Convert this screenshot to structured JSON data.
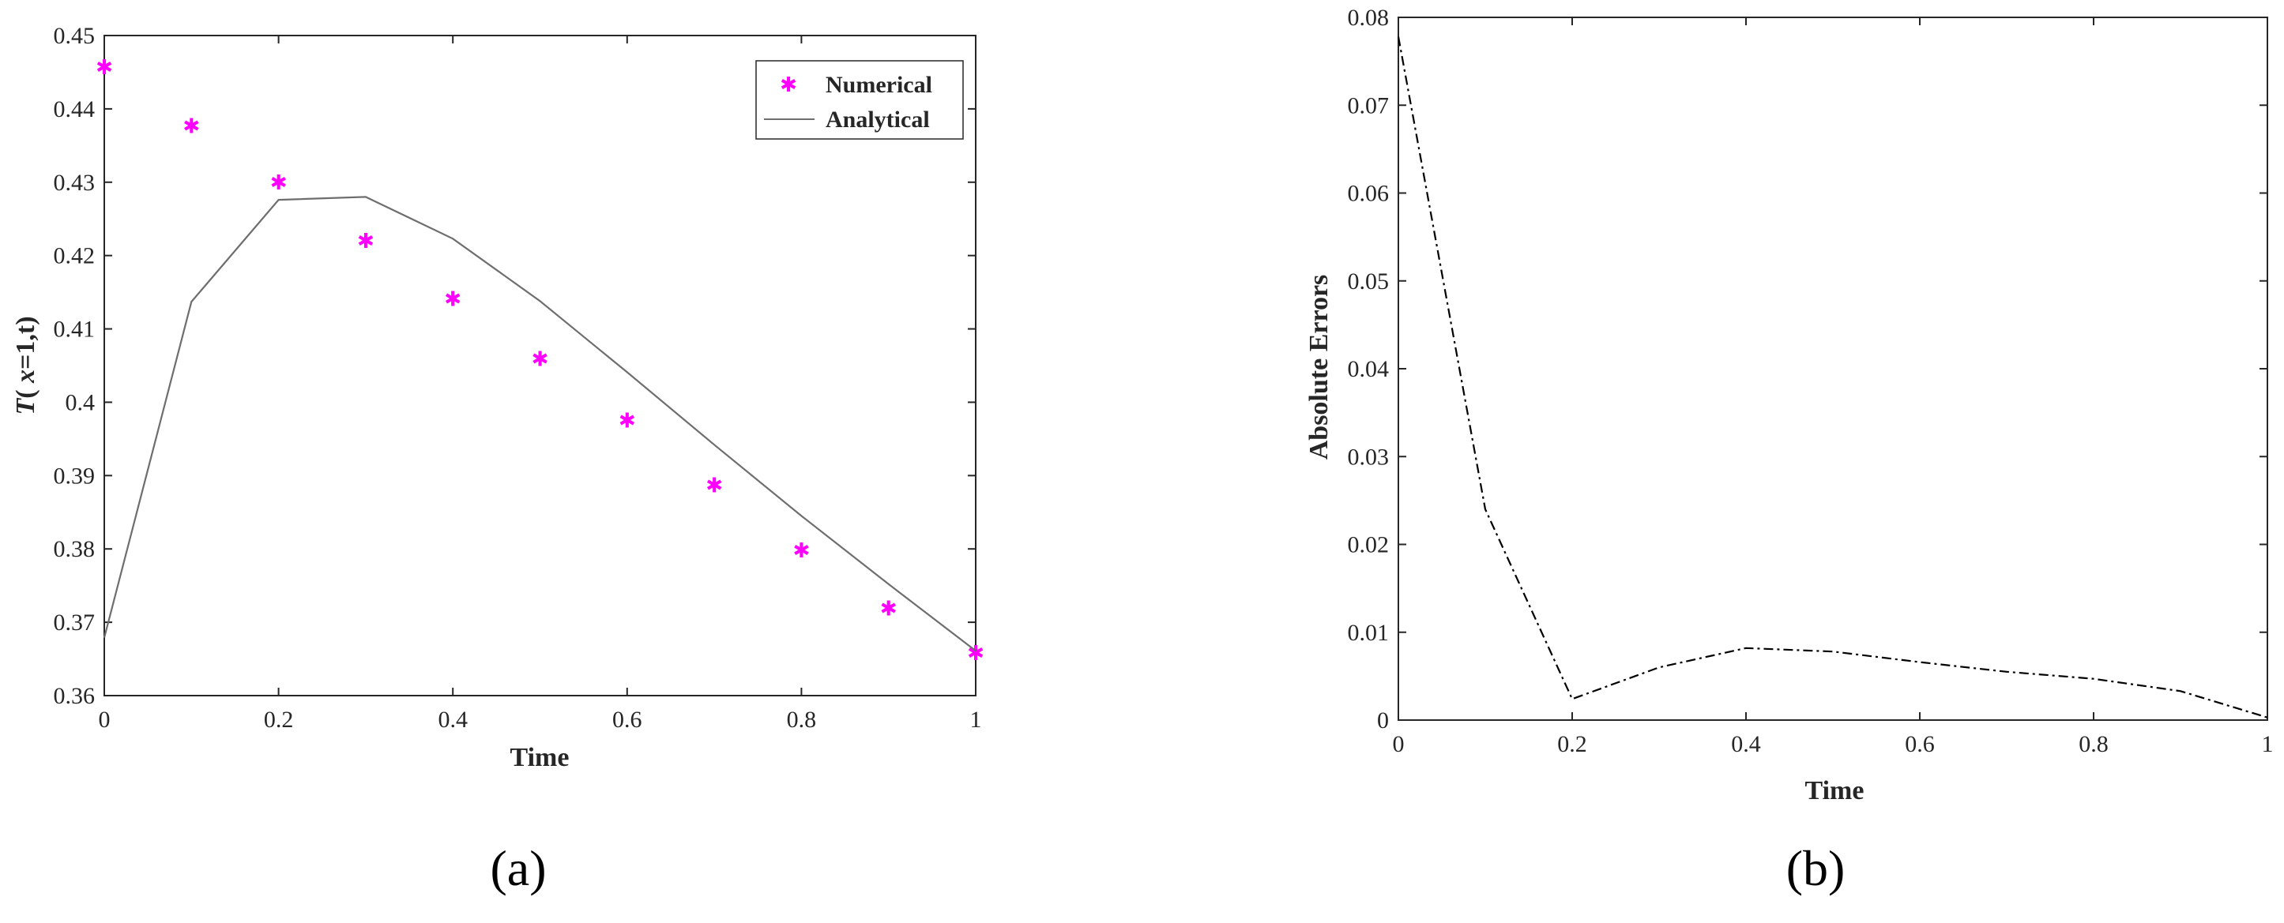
{
  "chart_data": [
    {
      "type": "line",
      "panel_label": "(a)",
      "xlabel": "Time",
      "ylabel_prefix": "T",
      "ylabel_italic": "x",
      "ylabel_suffix": "=1,t)",
      "ylabel_open": "( ",
      "xlim": [
        0,
        1
      ],
      "ylim": [
        0.36,
        0.45
      ],
      "xticks": [
        0,
        0.2,
        0.4,
        0.6,
        0.8,
        1
      ],
      "xtick_labels": [
        "0",
        "0.2",
        "0.4",
        "0.6",
        "0.8",
        "1"
      ],
      "yticks": [
        0.36,
        0.37,
        0.38,
        0.39,
        0.4,
        0.41,
        0.42,
        0.43,
        0.44,
        0.45
      ],
      "ytick_labels": [
        "0.36",
        "0.37",
        "0.38",
        "0.39",
        "0.4",
        "0.41",
        "0.42",
        "0.43",
        "0.44",
        "0.45"
      ],
      "grid": false,
      "legend_position": "top-right",
      "series": [
        {
          "name": "Numerical",
          "style": "markers",
          "color": "#ff00ff",
          "x": [
            0,
            0.1,
            0.2,
            0.3,
            0.4,
            0.5,
            0.6,
            0.7,
            0.8,
            0.9,
            1
          ],
          "y": [
            0.4457,
            0.4377,
            0.43,
            0.422,
            0.4141,
            0.4059,
            0.3975,
            0.3887,
            0.3798,
            0.3719,
            0.3658
          ]
        },
        {
          "name": "Analytical",
          "style": "line",
          "color": "#6e6e6e",
          "x": [
            0,
            0.1,
            0.2,
            0.3,
            0.4,
            0.5,
            0.6,
            0.7,
            0.8,
            0.9,
            1
          ],
          "y": [
            0.3679,
            0.4137,
            0.4276,
            0.428,
            0.4223,
            0.4138,
            0.4041,
            0.3942,
            0.3845,
            0.3752,
            0.3661
          ]
        }
      ]
    },
    {
      "type": "line",
      "panel_label": "(b)",
      "xlabel": "Time",
      "ylabel": "Absolute Errors",
      "xlim": [
        0,
        1
      ],
      "ylim": [
        0,
        0.08
      ],
      "xticks": [
        0,
        0.2,
        0.4,
        0.6,
        0.8,
        1
      ],
      "xtick_labels": [
        "0",
        "0.2",
        "0.4",
        "0.6",
        "0.8",
        "1"
      ],
      "yticks": [
        0,
        0.01,
        0.02,
        0.03,
        0.04,
        0.05,
        0.06,
        0.07,
        0.08
      ],
      "ytick_labels": [
        "0",
        "0.01",
        "0.02",
        "0.03",
        "0.04",
        "0.05",
        "0.06",
        "0.07",
        "0.08"
      ],
      "grid": false,
      "series": [
        {
          "style": "dashdot",
          "color": "#000000",
          "x": [
            0,
            0.1,
            0.2,
            0.3,
            0.4,
            0.5,
            0.6,
            0.7,
            0.8,
            0.9,
            1
          ],
          "y": [
            0.0778,
            0.024,
            0.0024,
            0.006,
            0.0082,
            0.0078,
            0.0066,
            0.0055,
            0.0047,
            0.0033,
            0.0003
          ]
        }
      ]
    }
  ]
}
